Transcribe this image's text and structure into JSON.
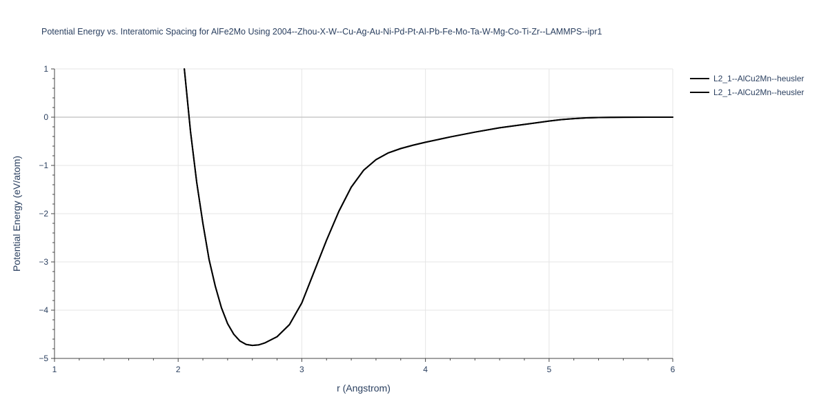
{
  "chart_data": {
    "type": "line",
    "title": "Potential Energy vs. Interatomic Spacing for AlFe2Mo Using 2004--Zhou-X-W--Cu-Ag-Au-Ni-Pd-Pt-Al-Pb-Fe-Mo-Ta-W-Mg-Co-Ti-Zr--LAMMPS--ipr1",
    "xlabel": "r (Angstrom)",
    "ylabel": "Potential Energy (eV/atom)",
    "xlim": [
      1,
      6
    ],
    "ylim": [
      -5,
      1
    ],
    "x_ticks": [
      1,
      2,
      3,
      4,
      5,
      6
    ],
    "x_tick_labels": [
      "1",
      "2",
      "3",
      "4",
      "5",
      "6"
    ],
    "y_ticks": [
      1,
      0,
      -1,
      -2,
      -3,
      -4,
      -5
    ],
    "y_tick_labels": [
      "1",
      "0",
      "−1",
      "−2",
      "−3",
      "−4",
      "−5"
    ],
    "grid": true,
    "legend_position": "top-right",
    "colors": {
      "line": "#000000",
      "grid": "#e5e5e5",
      "zeroline": "#c8c8c8",
      "axis": "#444444",
      "text": "#2a3f5f"
    },
    "series": [
      {
        "name": "L2_1--AlCu2Mn--heusler",
        "x": [
          2.05,
          2.1,
          2.15,
          2.2,
          2.25,
          2.3,
          2.35,
          2.4,
          2.45,
          2.5,
          2.55,
          2.6,
          2.65,
          2.7,
          2.8,
          2.9,
          3.0,
          3.1,
          3.2,
          3.3,
          3.4,
          3.5,
          3.6,
          3.7,
          3.8,
          3.9,
          4.0,
          4.2,
          4.4,
          4.6,
          4.8,
          5.0,
          5.1,
          5.2,
          5.3,
          5.4,
          5.5,
          5.6,
          5.8,
          6.0
        ],
        "y": [
          1.0,
          -0.3,
          -1.35,
          -2.2,
          -2.95,
          -3.5,
          -3.95,
          -4.28,
          -4.5,
          -4.64,
          -4.71,
          -4.73,
          -4.72,
          -4.68,
          -4.55,
          -4.3,
          -3.85,
          -3.2,
          -2.55,
          -1.95,
          -1.45,
          -1.1,
          -0.88,
          -0.74,
          -0.65,
          -0.58,
          -0.52,
          -0.41,
          -0.31,
          -0.22,
          -0.15,
          -0.08,
          -0.05,
          -0.03,
          -0.015,
          -0.008,
          -0.004,
          -0.002,
          0.0,
          0.0
        ]
      },
      {
        "name": "L2_1--AlCu2Mn--heusler",
        "x": [
          2.05,
          2.1,
          2.15,
          2.2,
          2.25,
          2.3,
          2.35,
          2.4,
          2.45,
          2.5,
          2.55,
          2.6,
          2.65,
          2.7,
          2.8,
          2.9,
          3.0,
          3.1,
          3.2,
          3.3,
          3.4,
          3.5,
          3.6,
          3.7,
          3.8,
          3.9,
          4.0,
          4.2,
          4.4,
          4.6,
          4.8,
          5.0,
          5.1,
          5.2,
          5.3,
          5.4,
          5.5,
          5.6,
          5.8,
          6.0
        ],
        "y": [
          1.0,
          -0.3,
          -1.35,
          -2.2,
          -2.95,
          -3.5,
          -3.95,
          -4.28,
          -4.5,
          -4.64,
          -4.71,
          -4.73,
          -4.72,
          -4.68,
          -4.55,
          -4.3,
          -3.85,
          -3.2,
          -2.55,
          -1.95,
          -1.45,
          -1.1,
          -0.88,
          -0.74,
          -0.65,
          -0.58,
          -0.52,
          -0.41,
          -0.31,
          -0.22,
          -0.15,
          -0.08,
          -0.05,
          -0.03,
          -0.015,
          -0.008,
          -0.004,
          -0.002,
          0.0,
          0.0
        ]
      }
    ]
  }
}
